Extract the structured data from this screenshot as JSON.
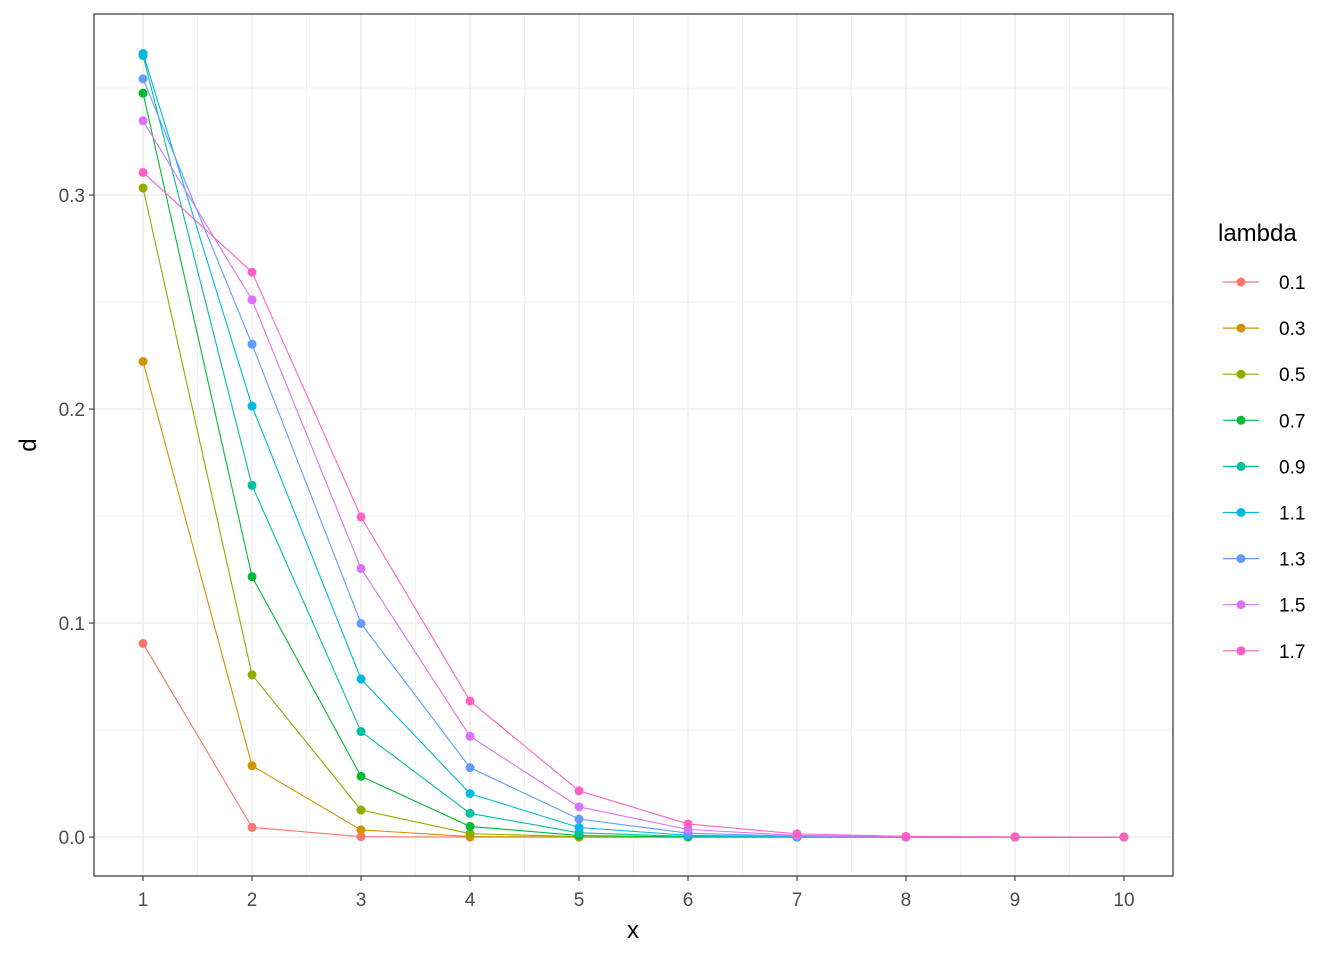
{
  "chart_data": {
    "type": "line",
    "xlabel": "x",
    "ylabel": "d",
    "xlim": [
      0.55,
      10.45
    ],
    "ylim": [
      -0.0182,
      0.3846
    ],
    "x_ticks": [
      1,
      2,
      3,
      4,
      5,
      6,
      7,
      8,
      9,
      10
    ],
    "x_tick_labels": [
      "1",
      "2",
      "3",
      "4",
      "5",
      "6",
      "7",
      "8",
      "9",
      "10"
    ],
    "y_ticks": [
      0.0,
      0.1,
      0.2,
      0.3
    ],
    "y_tick_labels": [
      "0.0",
      "0.1",
      "0.2",
      "0.3"
    ],
    "grid": true,
    "legend": {
      "title": "lambda",
      "placement": "right"
    },
    "x": [
      1,
      2,
      3,
      4,
      5,
      6,
      7,
      8,
      9,
      10
    ],
    "series": [
      {
        "name": "0.1",
        "color": "#F8766D",
        "values": [
          0.090484,
          0.004524,
          0.000151,
          4e-06,
          0,
          0,
          0,
          0,
          0,
          0
        ]
      },
      {
        "name": "0.3",
        "color": "#D39200",
        "values": [
          0.222245,
          0.033337,
          0.003334,
          0.00025,
          1.5e-05,
          1e-06,
          0,
          0,
          0,
          0
        ]
      },
      {
        "name": "0.5",
        "color": "#93AA00",
        "values": [
          0.303265,
          0.075816,
          0.012636,
          0.00158,
          0.000158,
          1.3e-05,
          1e-06,
          0,
          0,
          0
        ]
      },
      {
        "name": "0.7",
        "color": "#00BA38",
        "values": [
          0.34761,
          0.121663,
          0.028388,
          0.004968,
          0.000696,
          8.1e-05,
          8e-06,
          1e-06,
          0,
          0
        ]
      },
      {
        "name": "0.9",
        "color": "#00C19F",
        "values": [
          0.365193,
          0.164337,
          0.049301,
          0.011093,
          0.001997,
          0.0003,
          3.9e-05,
          4e-06,
          0,
          0
        ]
      },
      {
        "name": "1.1",
        "color": "#00B9E3",
        "values": [
          0.366158,
          0.201387,
          0.073842,
          0.020307,
          0.004467,
          0.000819,
          0.000129,
          1.8e-05,
          2e-06,
          0
        ]
      },
      {
        "name": "1.3",
        "color": "#619CFF",
        "values": [
          0.354291,
          0.230289,
          0.099792,
          0.032432,
          0.008432,
          0.001827,
          0.000339,
          5.5e-05,
          8e-06,
          1e-06
        ]
      },
      {
        "name": "1.5",
        "color": "#DB72FB",
        "values": [
          0.334695,
          0.251021,
          0.125511,
          0.047067,
          0.01412,
          0.00353,
          0.000756,
          0.000142,
          2.4e-05,
          4e-06
        ]
      },
      {
        "name": "1.7",
        "color": "#FF61C3",
        "values": [
          0.310562,
          0.263978,
          0.149587,
          0.063575,
          0.021615,
          0.006124,
          0.001487,
          0.000316,
          6e-05,
          1e-05
        ]
      }
    ]
  }
}
